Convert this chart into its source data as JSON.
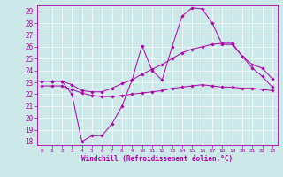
{
  "xlabel": "Windchill (Refroidissement éolien,°C)",
  "background_color": "#cce8e8",
  "grid_color": "#ffffff",
  "line_color": "#aa00aa",
  "xlim": [
    -0.5,
    23.5
  ],
  "ylim": [
    17.7,
    29.5
  ],
  "x_ticks": [
    0,
    1,
    2,
    3,
    4,
    5,
    6,
    7,
    8,
    9,
    10,
    11,
    12,
    13,
    14,
    15,
    16,
    17,
    18,
    19,
    20,
    21,
    22,
    23
  ],
  "y_ticks": [
    18,
    19,
    20,
    21,
    22,
    23,
    24,
    25,
    26,
    27,
    28,
    29
  ],
  "line1_x": [
    0,
    1,
    2,
    3,
    4,
    5,
    6,
    7,
    8,
    9,
    10,
    11,
    12,
    13,
    14,
    15,
    16,
    17,
    18,
    19,
    20,
    21,
    22,
    23
  ],
  "line1_y": [
    23.1,
    23.1,
    23.1,
    22.0,
    18.0,
    18.5,
    18.5,
    19.5,
    21.0,
    23.2,
    26.1,
    24.0,
    23.2,
    26.0,
    28.6,
    29.3,
    29.2,
    28.0,
    26.2,
    26.2,
    25.2,
    24.2,
    23.5,
    22.6
  ],
  "line2_x": [
    0,
    1,
    2,
    3,
    4,
    5,
    6,
    7,
    8,
    9,
    10,
    11,
    12,
    13,
    14,
    15,
    16,
    17,
    18,
    19,
    20,
    21,
    22,
    23
  ],
  "line2_y": [
    23.1,
    23.1,
    23.1,
    22.8,
    22.3,
    22.2,
    22.2,
    22.5,
    22.9,
    23.2,
    23.7,
    24.1,
    24.5,
    25.0,
    25.5,
    25.8,
    26.0,
    26.2,
    26.3,
    26.3,
    25.2,
    24.5,
    24.2,
    23.3
  ],
  "line3_x": [
    0,
    1,
    2,
    3,
    4,
    5,
    6,
    7,
    8,
    9,
    10,
    11,
    12,
    13,
    14,
    15,
    16,
    17,
    18,
    19,
    20,
    21,
    22,
    23
  ],
  "line3_y": [
    22.7,
    22.7,
    22.7,
    22.4,
    22.1,
    21.9,
    21.8,
    21.8,
    21.9,
    22.0,
    22.1,
    22.2,
    22.3,
    22.5,
    22.6,
    22.7,
    22.8,
    22.7,
    22.6,
    22.6,
    22.5,
    22.5,
    22.4,
    22.3
  ]
}
